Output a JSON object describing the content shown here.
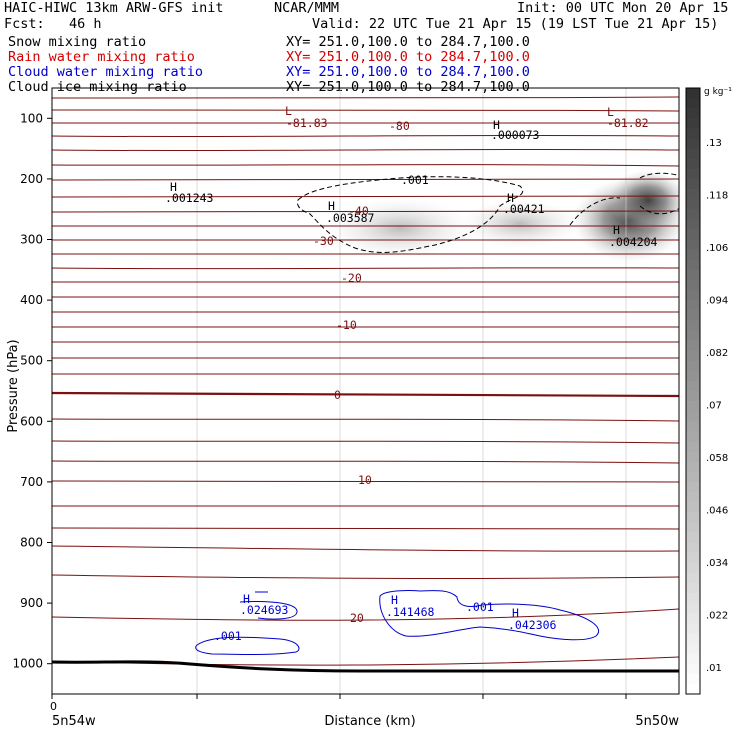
{
  "header": {
    "title_left": "HAIC-HIWC 13km ARW-GFS init",
    "org": "NCAR/MMM",
    "init": "Init: 00 UTC Mon 20 Apr 15",
    "fcst": "Fcst:   46 h",
    "valid": "Valid: 22 UTC Tue 21 Apr 15 (19 LST Tue 21 Apr 15)"
  },
  "legend": {
    "snow": {
      "label": "Snow mixing ratio",
      "xy": "XY= 251.0,100.0 to 284.7,100.0",
      "color": "#000000"
    },
    "rain": {
      "label": "Rain water mixing ratio",
      "xy": "XY= 251.0,100.0 to 284.7,100.0",
      "color": "#d40000"
    },
    "cloud": {
      "label": "Cloud water mixing ratio",
      "xy": "XY= 251.0,100.0 to 284.7,100.0",
      "color": "#0000cc"
    },
    "ice": {
      "label": "Cloud ice mixing ratio",
      "xy": "XY= 251.0,100.0 to 284.7,100.0",
      "color": "#000000"
    }
  },
  "chart_data": {
    "type": "heatmap",
    "ylabel": "Pressure (hPa)",
    "xlabel": "Distance (km)",
    "x_left_label": "5n54w",
    "x_right_label": "5n50w",
    "x_zero_label": "0",
    "ylim": [
      1050,
      50
    ],
    "y_ticks": [
      100,
      200,
      300,
      400,
      500,
      600,
      700,
      800,
      900,
      1000
    ],
    "colorbar": {
      "unit": "g kg⁻¹",
      "ticks": [
        ".13",
        ".118",
        ".106",
        ".094",
        ".082",
        ".07",
        ".058",
        ".046",
        ".034",
        ".022",
        ".01"
      ]
    },
    "temperature_labels": [
      "-81.83",
      "-80",
      "-81.82",
      "-40",
      "-30",
      "-20",
      "-10",
      "0",
      "10",
      "20"
    ],
    "contour_labels": [
      {
        "text": ".001243",
        "series": "ice"
      },
      {
        "text": ".003587",
        "series": "ice"
      },
      {
        "text": ".000073",
        "series": "ice"
      },
      {
        "text": ".00421",
        "series": "ice"
      },
      {
        "text": ".004204",
        "series": "ice"
      },
      {
        "text": ".001",
        "series": "ice"
      },
      {
        "text": ".024693",
        "series": "cloud"
      },
      {
        "text": ".001",
        "series": "cloud"
      },
      {
        "text": ".141468",
        "series": "cloud"
      },
      {
        "text": ".001",
        "series": "cloud"
      },
      {
        "text": ".042306",
        "series": "cloud"
      }
    ],
    "marker_H": "H",
    "marker_L": "L"
  }
}
